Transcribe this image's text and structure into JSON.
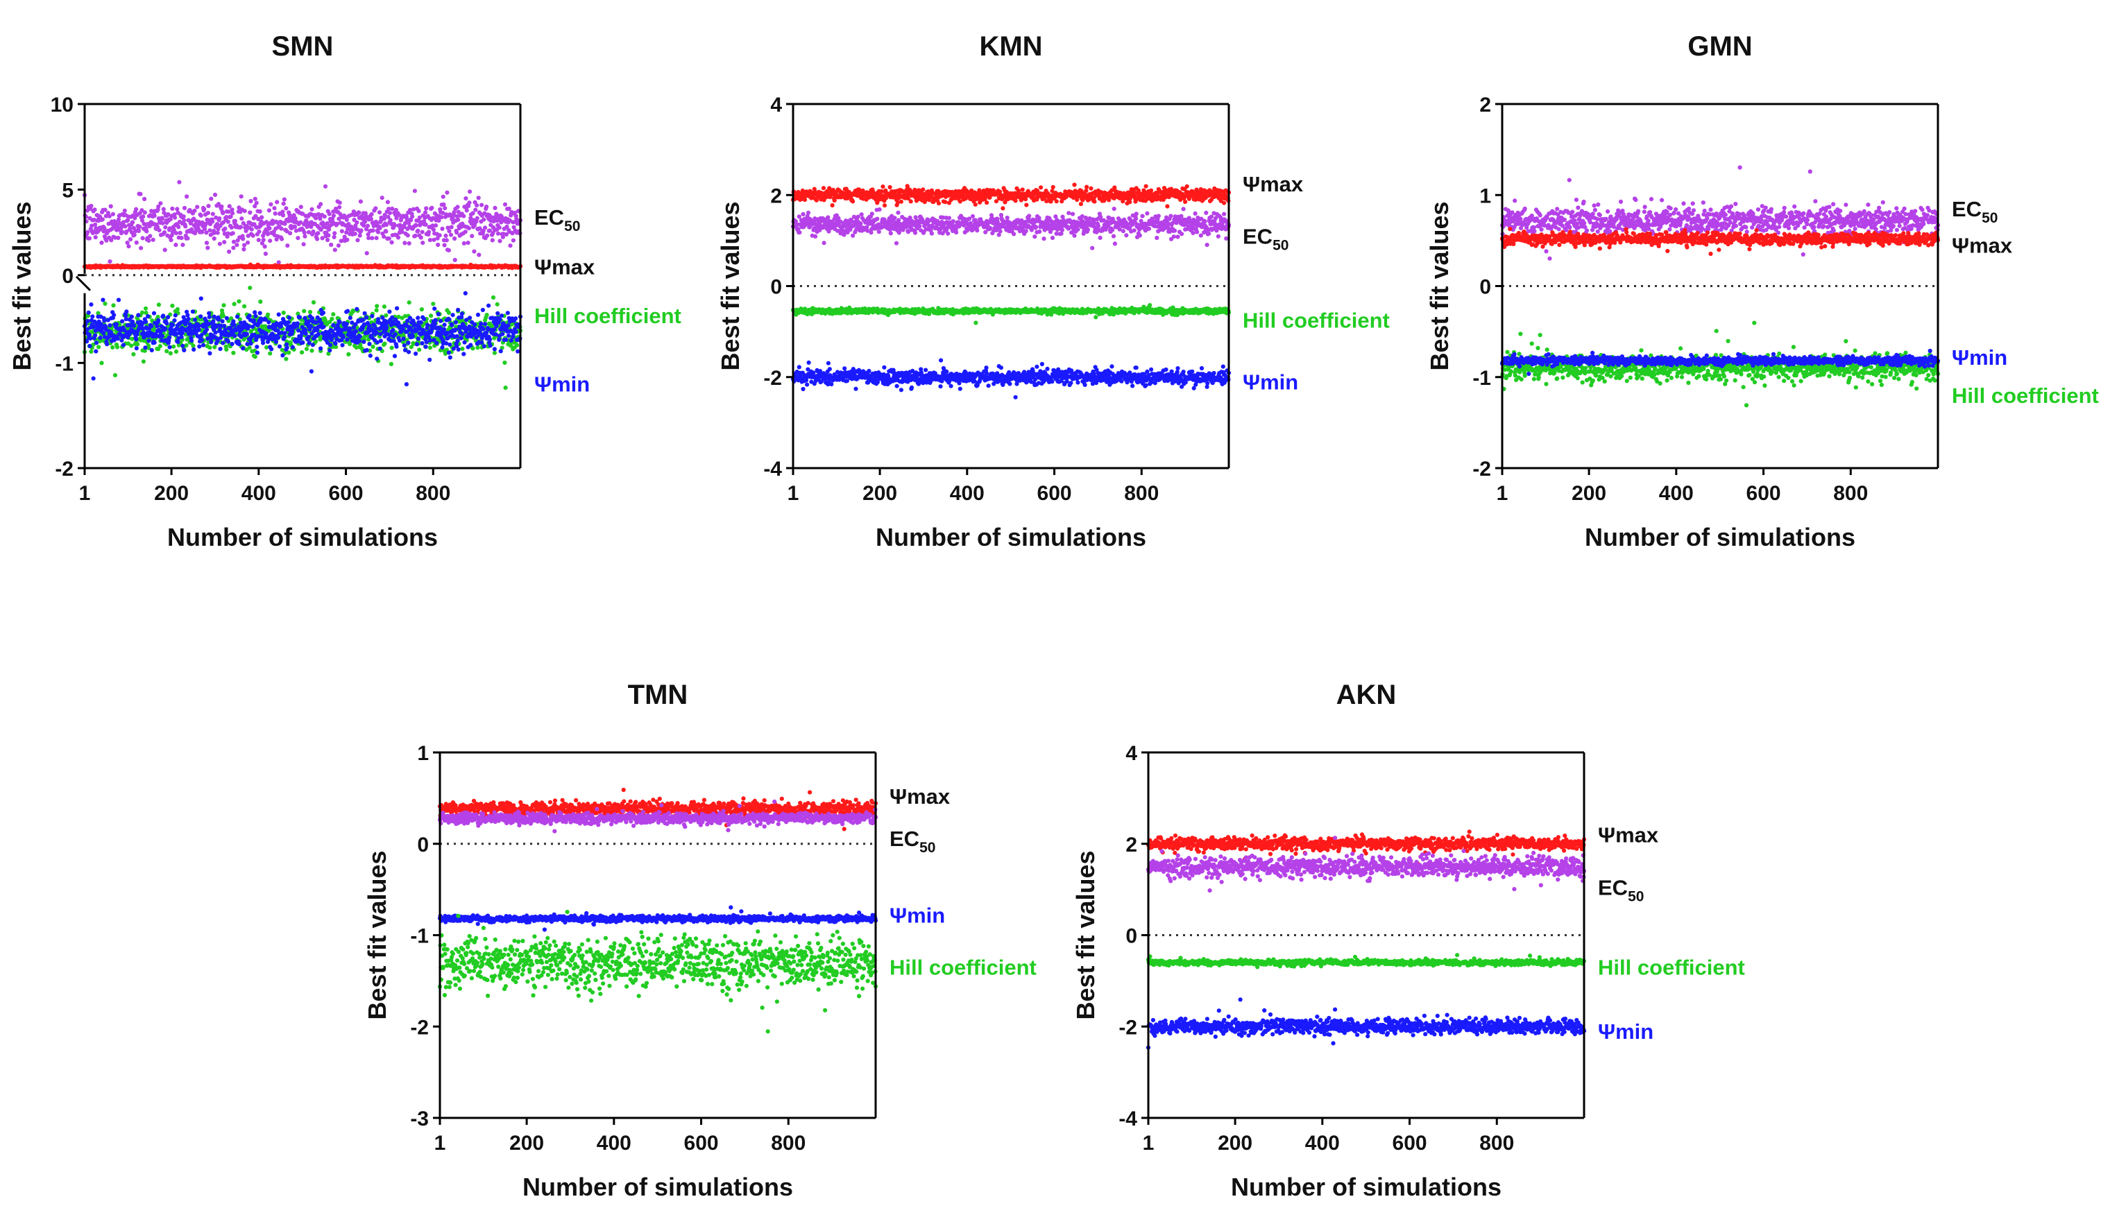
{
  "chart_data": [
    {
      "type": "scatter",
      "title": "SMN",
      "xlabel": "Number of simulations",
      "ylabel": "Best fit values",
      "xlim": [
        1,
        1000
      ],
      "x_ticks": [
        "1",
        "200",
        "400",
        "600",
        "800"
      ],
      "y_scale": "broken",
      "y_ticks": [
        {
          "value": 10,
          "label": "10"
        },
        {
          "value": 5,
          "label": "5"
        },
        {
          "value": 0,
          "label": "0"
        },
        {
          "value": -1,
          "label": "-1"
        },
        {
          "value": -2,
          "label": "-2"
        }
      ],
      "reference_line": 0,
      "series": [
        {
          "name": "EC50",
          "label_main": "EC",
          "label_sub": "50",
          "color": "#b542e8",
          "center": 3.0,
          "spread": 1.1,
          "label_value": 3.4
        },
        {
          "name": "Ψmax",
          "label_main": "Ψmax",
          "label_sub": "",
          "color": "#ff1a1a",
          "center": 0.5,
          "spread": 0.05,
          "label_value": 0.5
        },
        {
          "name": "Hill coefficient",
          "label_main": "Hill coefficient",
          "label_sub": "",
          "color": "#22cc22",
          "center": -0.7,
          "spread": 0.18,
          "label_value": -0.55
        },
        {
          "name": "Ψmin",
          "label_main": "Ψmin",
          "label_sub": "",
          "color": "#1a1aff",
          "center": -0.7,
          "spread": 0.15,
          "label_value": -1.2
        }
      ]
    },
    {
      "type": "scatter",
      "title": "KMN",
      "xlabel": "Number of simulations",
      "ylabel": "Best fit values",
      "xlim": [
        1,
        1000
      ],
      "x_ticks": [
        "1",
        "200",
        "400",
        "600",
        "800"
      ],
      "ylim": [
        -4,
        4
      ],
      "y_ticks": [
        {
          "value": 4,
          "label": "4"
        },
        {
          "value": 2,
          "label": "2"
        },
        {
          "value": 0,
          "label": "0"
        },
        {
          "value": -2,
          "label": "-2"
        },
        {
          "value": -4,
          "label": "-4"
        }
      ],
      "reference_line": 0,
      "series": [
        {
          "name": "Ψmax",
          "label_main": "Ψmax",
          "label_sub": "",
          "color": "#ff1a1a",
          "center": 2.0,
          "spread": 0.12,
          "label_value": 2.25
        },
        {
          "name": "EC50",
          "label_main": "EC",
          "label_sub": "50",
          "color": "#b542e8",
          "center": 1.35,
          "spread": 0.18,
          "label_value": 1.1
        },
        {
          "name": "Hill coefficient",
          "label_main": "Hill coefficient",
          "label_sub": "",
          "color": "#22cc22",
          "center": -0.55,
          "spread": 0.05,
          "label_value": -0.75
        },
        {
          "name": "Ψmin",
          "label_main": "Ψmin",
          "label_sub": "",
          "color": "#1a1aff",
          "center": -2.0,
          "spread": 0.15,
          "label_value": -2.1
        }
      ]
    },
    {
      "type": "scatter",
      "title": "GMN",
      "xlabel": "Number of simulations",
      "ylabel": "Best fit values",
      "xlim": [
        1,
        1000
      ],
      "x_ticks": [
        "1",
        "200",
        "400",
        "600",
        "800"
      ],
      "ylim": [
        -2,
        2
      ],
      "y_ticks": [
        {
          "value": 2,
          "label": "2"
        },
        {
          "value": 1,
          "label": "1"
        },
        {
          "value": 0,
          "label": "0"
        },
        {
          "value": -1,
          "label": "-1"
        },
        {
          "value": -2,
          "label": "-2"
        }
      ],
      "reference_line": 0,
      "series": [
        {
          "name": "EC50",
          "label_main": "EC",
          "label_sub": "50",
          "color": "#b542e8",
          "center": 0.72,
          "spread": 0.13,
          "label_value": 0.85
        },
        {
          "name": "Ψmax",
          "label_main": "Ψmax",
          "label_sub": "",
          "color": "#ff1a1a",
          "center": 0.52,
          "spread": 0.06,
          "label_value": 0.45
        },
        {
          "name": "Hill coefficient",
          "label_main": "Hill coefficient",
          "label_sub": "",
          "color": "#22cc22",
          "center": -0.9,
          "spread": 0.13,
          "label_value": -1.2
        },
        {
          "name": "Ψmin",
          "label_main": "Ψmin",
          "label_sub": "",
          "color": "#1a1aff",
          "center": -0.82,
          "spread": 0.04,
          "label_value": -0.78
        }
      ]
    },
    {
      "type": "scatter",
      "title": "TMN",
      "xlabel": "Number of simulations",
      "ylabel": "Best fit values",
      "xlim": [
        1,
        1000
      ],
      "x_ticks": [
        "1",
        "200",
        "400",
        "600",
        "800"
      ],
      "ylim": [
        -3,
        1
      ],
      "y_ticks": [
        {
          "value": 1,
          "label": "1"
        },
        {
          "value": 0,
          "label": "0"
        },
        {
          "value": -1,
          "label": "-1"
        },
        {
          "value": -2,
          "label": "-2"
        },
        {
          "value": -3,
          "label": "-3"
        }
      ],
      "reference_line": 0,
      "series": [
        {
          "name": "Ψmax",
          "label_main": "Ψmax",
          "label_sub": "",
          "color": "#ff1a1a",
          "center": 0.38,
          "spread": 0.07,
          "label_value": 0.52
        },
        {
          "name": "EC50",
          "label_main": "EC",
          "label_sub": "50",
          "color": "#b542e8",
          "center": 0.28,
          "spread": 0.05,
          "label_value": 0.06
        },
        {
          "name": "Ψmin",
          "label_main": "Ψmin",
          "label_sub": "",
          "color": "#1a1aff",
          "center": -0.82,
          "spread": 0.03,
          "label_value": -0.78
        },
        {
          "name": "Hill coefficient",
          "label_main": "Hill coefficient",
          "label_sub": "",
          "color": "#22cc22",
          "center": -1.3,
          "spread": 0.25,
          "label_value": -1.35
        }
      ]
    },
    {
      "type": "scatter",
      "title": "AKN",
      "xlabel": "Number of simulations",
      "ylabel": "Best fit values",
      "xlim": [
        1,
        1000
      ],
      "x_ticks": [
        "1",
        "200",
        "400",
        "600",
        "800"
      ],
      "ylim": [
        -4,
        4
      ],
      "y_ticks": [
        {
          "value": 4,
          "label": "4"
        },
        {
          "value": 2,
          "label": "2"
        },
        {
          "value": 0,
          "label": "0"
        },
        {
          "value": -2,
          "label": "-2"
        },
        {
          "value": -4,
          "label": "-4"
        }
      ],
      "reference_line": 0,
      "series": [
        {
          "name": "Ψmax",
          "label_main": "Ψmax",
          "label_sub": "",
          "color": "#ff1a1a",
          "center": 2.0,
          "spread": 0.12,
          "label_value": 2.2
        },
        {
          "name": "EC50",
          "label_main": "EC",
          "label_sub": "50",
          "color": "#b542e8",
          "center": 1.5,
          "spread": 0.2,
          "label_value": 1.05
        },
        {
          "name": "Hill coefficient",
          "label_main": "Hill coefficient",
          "label_sub": "",
          "color": "#22cc22",
          "center": -0.6,
          "spread": 0.05,
          "label_value": -0.7
        },
        {
          "name": "Ψmin",
          "label_main": "Ψmin",
          "label_sub": "",
          "color": "#1a1aff",
          "center": -2.0,
          "spread": 0.15,
          "label_value": -2.1
        }
      ]
    }
  ]
}
